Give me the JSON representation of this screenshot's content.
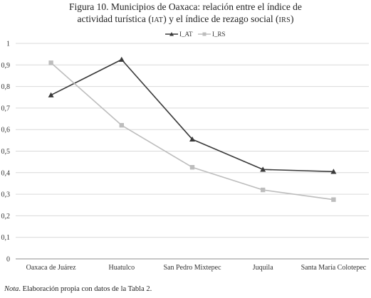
{
  "figure": {
    "title_line1": "Figura 10. Municipios de Oaxaca: relación entre el índice de",
    "title_line2_a": "actividad turística (",
    "title_line2_iat": "IAT",
    "title_line2_b": ") y el índice de rezago social (",
    "title_line2_irs": "IRS",
    "title_line2_c": ")",
    "note_label": "Nota",
    "note_text": ". Elaboración propia con datos de la Tabla 2."
  },
  "colors": {
    "I_AT": "#3a3a3a",
    "I_RS": "#bdbdbd",
    "grid": "#d9d9d9",
    "axis": "#8c8c8c"
  },
  "chart_data": {
    "type": "line",
    "title": "Figura 10. Municipios de Oaxaca: relación entre el índice de actividad turística (IAT) y el índice de rezago social (IRS)",
    "categories": [
      "Oaxaca de Juárez",
      "Huatulco",
      "San Pedro Mixtepec",
      "Juquila",
      "Santa María Colotepec"
    ],
    "series": [
      {
        "name": "I_AT",
        "marker": "triangle",
        "values": [
          0.76,
          0.925,
          0.555,
          0.415,
          0.405
        ]
      },
      {
        "name": "I_RS",
        "marker": "square",
        "values": [
          0.91,
          0.62,
          0.425,
          0.32,
          0.275
        ]
      }
    ],
    "ylim": [
      0,
      1
    ],
    "yticks": [
      "0",
      "0,1",
      "0,2",
      "0,3",
      "0,4",
      "0,5",
      "0,6",
      "0,7",
      "0,8",
      "0,9",
      "1"
    ],
    "grid": true,
    "legend": "top-right",
    "xlabel": "",
    "ylabel": ""
  }
}
